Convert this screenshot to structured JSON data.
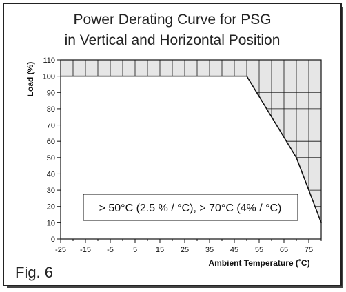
{
  "chart_data": {
    "type": "area",
    "title_line1": "Power Derating Curve for PSG",
    "title_line2": "in Vertical and Horizontal Position",
    "xlabel": "Ambient Temperature (˚C)",
    "ylabel": "Load (%)",
    "xlim": [
      -25,
      80
    ],
    "ylim": [
      0,
      110
    ],
    "x_ticks": [
      -25,
      -15,
      -5,
      5,
      15,
      25,
      35,
      45,
      55,
      65,
      75
    ],
    "y_ticks": [
      0,
      10,
      20,
      30,
      40,
      50,
      60,
      70,
      80,
      90,
      100,
      110
    ],
    "series": [
      {
        "x": [
          -25,
          50,
          70,
          80
        ],
        "y": [
          100,
          100,
          50,
          10
        ]
      }
    ],
    "annotation": "> 50°C (2.5 % / °C), > 70°C (4% / °C)",
    "grid": "shaded region above curve only",
    "colors": {
      "shaded_region": "#e6e6e6",
      "line": "#111111"
    }
  },
  "figure_label": "Fig. 6"
}
